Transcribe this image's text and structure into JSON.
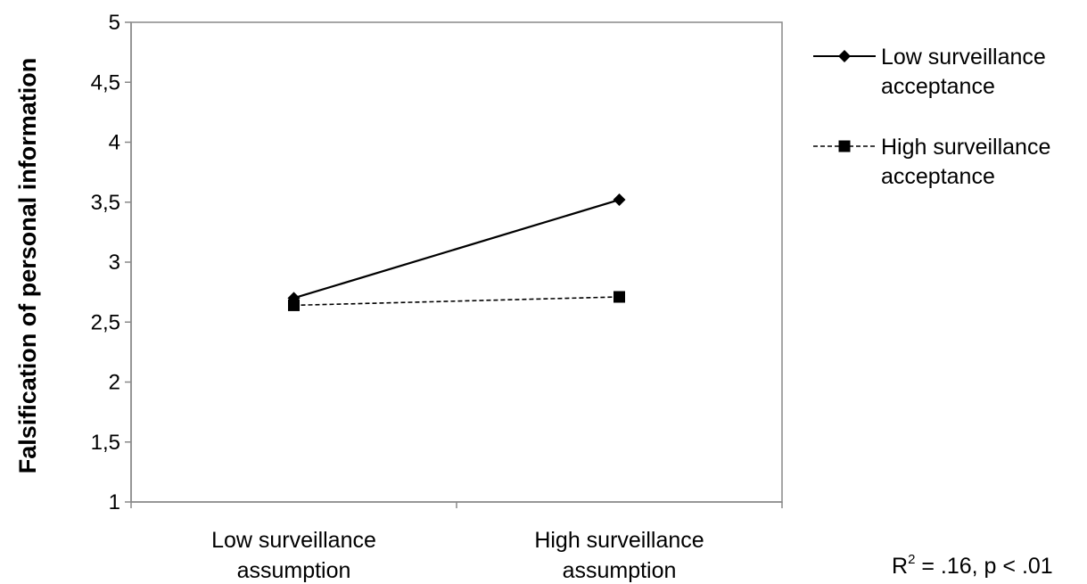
{
  "chart_data": {
    "type": "line",
    "ylabel": "Falsification of personal information",
    "xlabel": "",
    "ylim": [
      1,
      5
    ],
    "y_ticks": [
      "1",
      "1,5",
      "2",
      "2,5",
      "3",
      "3,5",
      "4",
      "4,5",
      "5"
    ],
    "categories": [
      [
        "Low surveillance",
        "assumption"
      ],
      [
        "High surveillance",
        "assumption"
      ]
    ],
    "series": [
      {
        "name": [
          "Low surveillance",
          "acceptance"
        ],
        "values": [
          2.7,
          3.52
        ],
        "marker": "diamond",
        "line": "solid",
        "color": "#000000"
      },
      {
        "name": [
          "High surveillance",
          "acceptance"
        ],
        "values": [
          2.64,
          2.71
        ],
        "marker": "square",
        "line": "dashed",
        "color": "#000000"
      }
    ],
    "grid": false,
    "legend_position": "right",
    "annotation": {
      "prefix": "R",
      "sup": "2",
      "text": " = .16, p < .01"
    }
  }
}
